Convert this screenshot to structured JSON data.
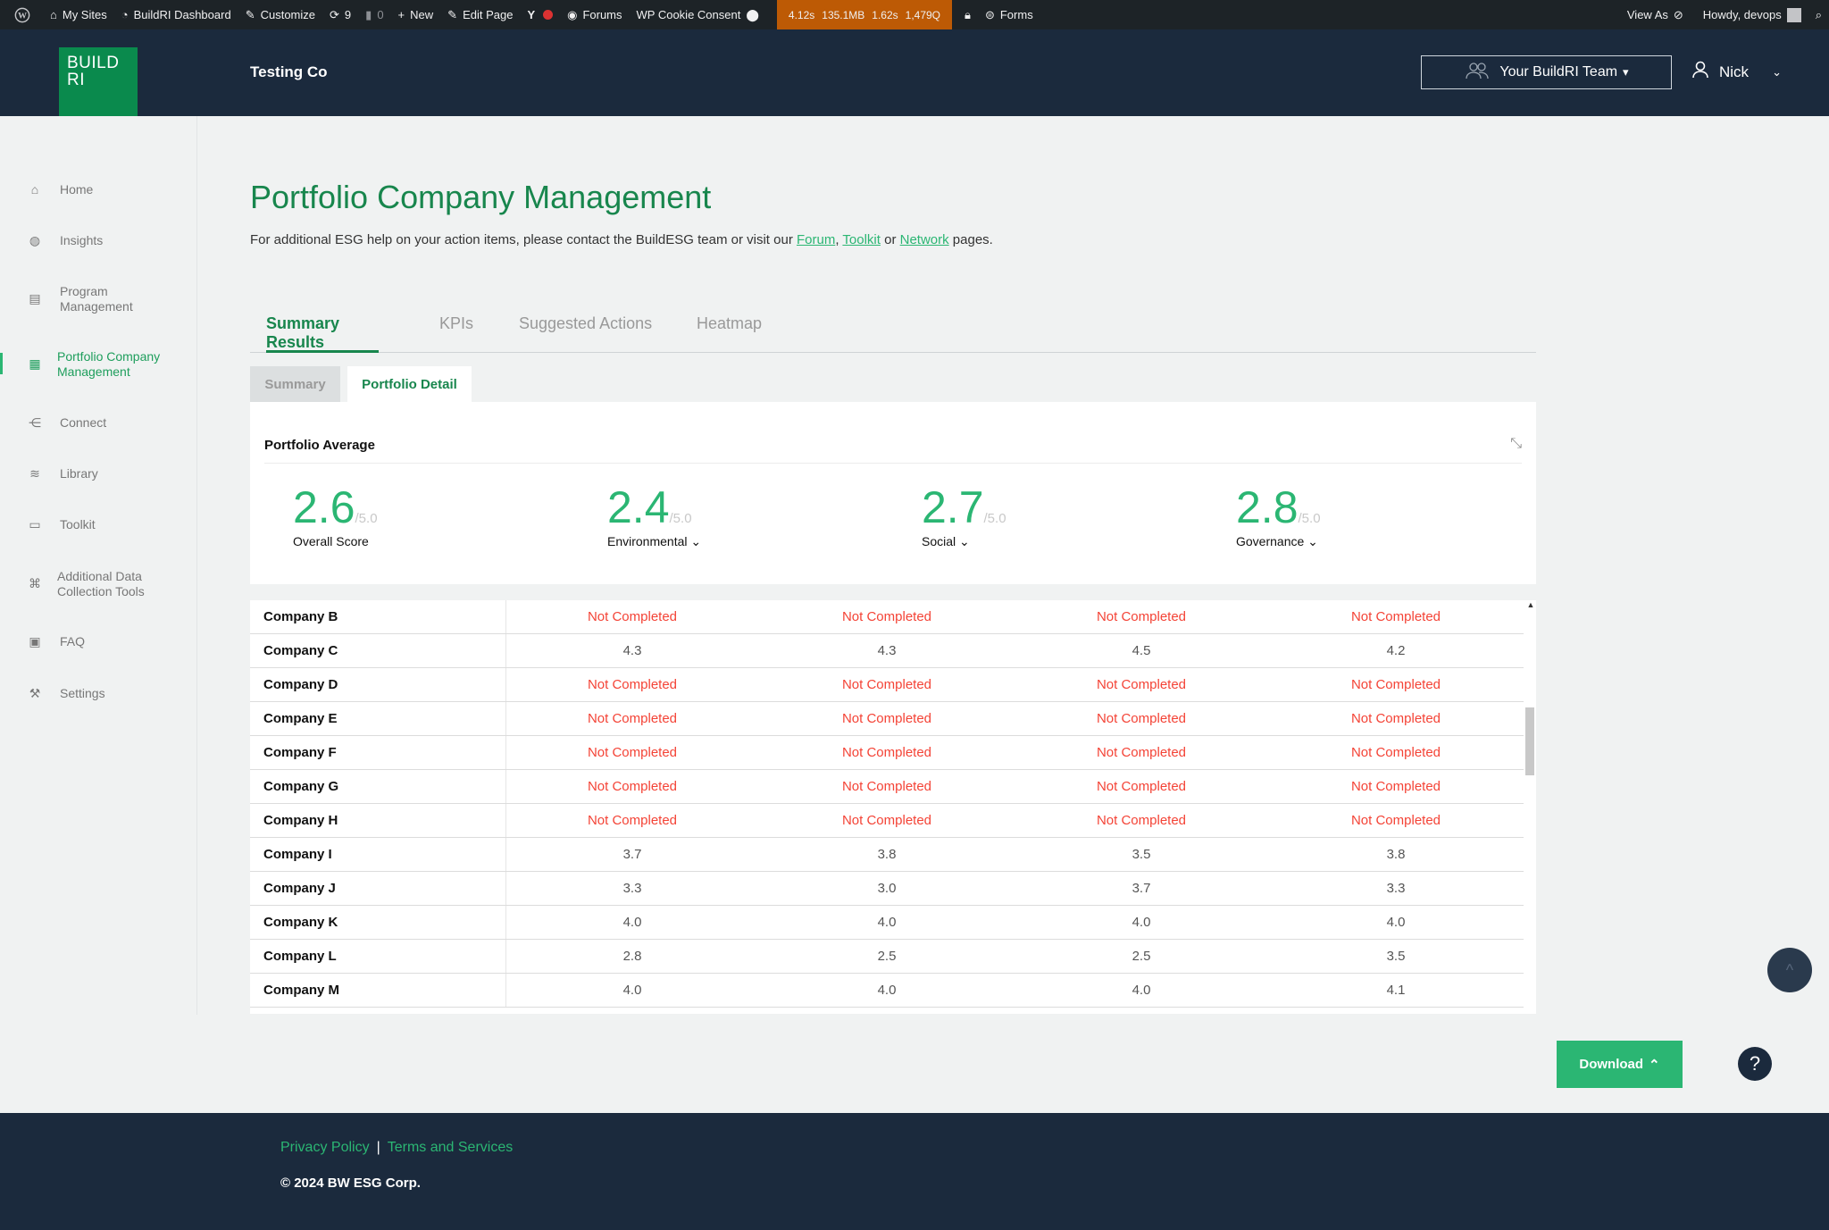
{
  "adminbar": {
    "my_sites": "My Sites",
    "dashboard": "BuildRI Dashboard",
    "customize": "Customize",
    "updates_count": "9",
    "comments_count": "0",
    "new": "New",
    "edit_page": "Edit Page",
    "forums": "Forums",
    "cookie": "WP Cookie Consent",
    "perf": [
      "4.12s",
      "135.1MB",
      "1.62s",
      "1,479Q"
    ],
    "forms": "Forms",
    "view_as": "View As",
    "howdy": "Howdy, devops"
  },
  "header": {
    "logo_line1": "BUILD",
    "logo_line2": "RI",
    "company": "Testing Co",
    "team_button": "Your BuildRI Team",
    "user_name": "Nick"
  },
  "sidebar": {
    "items": [
      {
        "label": "Home",
        "icon": "home-icon"
      },
      {
        "label": "Insights",
        "icon": "globe-icon"
      },
      {
        "label": "Program Management",
        "icon": "program-icon"
      },
      {
        "label": "Portfolio Company Management",
        "icon": "dashboard-icon"
      },
      {
        "label": "Connect",
        "icon": "connect-icon"
      },
      {
        "label": "Library",
        "icon": "layers-icon"
      },
      {
        "label": "Toolkit",
        "icon": "toolkit-icon"
      },
      {
        "label": "Additional Data Collection Tools",
        "icon": "command-icon"
      },
      {
        "label": "FAQ",
        "icon": "faq-icon"
      },
      {
        "label": "Settings",
        "icon": "wrench-icon"
      }
    ]
  },
  "page": {
    "title": "Portfolio Company Management",
    "subtitle_pre": "For additional ESG help on your action items, please contact the BuildESG team or visit our ",
    "link_forum": "Forum",
    "comma": ",",
    "link_toolkit": "Toolkit",
    "or": " or ",
    "link_network": "Network",
    "subtitle_post": " pages."
  },
  "tabs": [
    "Summary Results",
    "KPIs",
    "Suggested Actions",
    "Heatmap"
  ],
  "subtabs": [
    "Summary",
    "Portfolio Detail"
  ],
  "average": {
    "title": "Portfolio Average",
    "denominator": "/5.0",
    "stats": [
      {
        "value": "2.6",
        "label": "Overall Score"
      },
      {
        "value": "2.4",
        "label": "Environmental"
      },
      {
        "value": "2.7",
        "label": "Social"
      },
      {
        "value": "2.8",
        "label": "Governance"
      }
    ]
  },
  "table": {
    "rows": [
      {
        "name": "Company B",
        "vals": [
          "Not Completed",
          "Not Completed",
          "Not Completed",
          "Not Completed"
        ]
      },
      {
        "name": "Company C",
        "vals": [
          "4.3",
          "4.3",
          "4.5",
          "4.2"
        ]
      },
      {
        "name": "Company D",
        "vals": [
          "Not Completed",
          "Not Completed",
          "Not Completed",
          "Not Completed"
        ]
      },
      {
        "name": "Company E",
        "vals": [
          "Not Completed",
          "Not Completed",
          "Not Completed",
          "Not Completed"
        ]
      },
      {
        "name": "Company F",
        "vals": [
          "Not Completed",
          "Not Completed",
          "Not Completed",
          "Not Completed"
        ]
      },
      {
        "name": "Company G",
        "vals": [
          "Not Completed",
          "Not Completed",
          "Not Completed",
          "Not Completed"
        ]
      },
      {
        "name": "Company H",
        "vals": [
          "Not Completed",
          "Not Completed",
          "Not Completed",
          "Not Completed"
        ]
      },
      {
        "name": "Company I",
        "vals": [
          "3.7",
          "3.8",
          "3.5",
          "3.8"
        ]
      },
      {
        "name": "Company J",
        "vals": [
          "3.3",
          "3.0",
          "3.7",
          "3.3"
        ]
      },
      {
        "name": "Company K",
        "vals": [
          "4.0",
          "4.0",
          "4.0",
          "4.0"
        ]
      },
      {
        "name": "Company L",
        "vals": [
          "2.8",
          "2.5",
          "2.5",
          "3.5"
        ]
      },
      {
        "name": "Company M",
        "vals": [
          "4.0",
          "4.0",
          "4.0",
          "4.1"
        ]
      }
    ]
  },
  "actions": {
    "download": "Download",
    "help": "?"
  },
  "footer": {
    "privacy": "Privacy Policy",
    "divider": "|",
    "terms": "Terms and Services",
    "copyright": "© 2024 BW ESG Corp."
  },
  "colors": {
    "brand_green": "#2bb673",
    "dark_green": "#18864d",
    "navy": "#1b2a3d",
    "not_completed": "#f44336"
  }
}
